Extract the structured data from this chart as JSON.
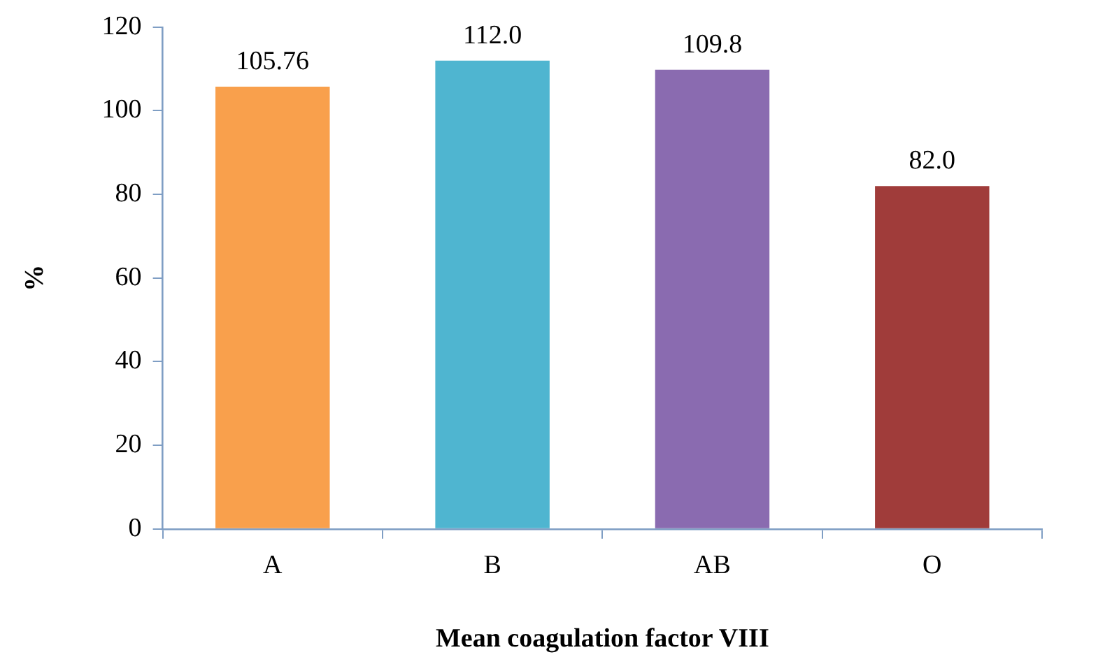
{
  "chart_data": {
    "type": "bar",
    "xlabel": "Mean coagulation factor VIII",
    "ylabel": "%",
    "categories": [
      "A",
      "B",
      "AB",
      "O"
    ],
    "values": [
      105.76,
      112.0,
      109.8,
      82.0
    ],
    "colors": [
      "#f9a04c",
      "#4fb5d0",
      "#8a6bb0",
      "#a03c3a"
    ],
    "value_labels": [
      "105.76",
      "112.0",
      "109.8",
      "82.0"
    ],
    "ylim": [
      0,
      120
    ],
    "yticks": [
      0,
      20,
      40,
      60,
      80,
      100,
      120
    ],
    "grid": false,
    "legend": false
  }
}
